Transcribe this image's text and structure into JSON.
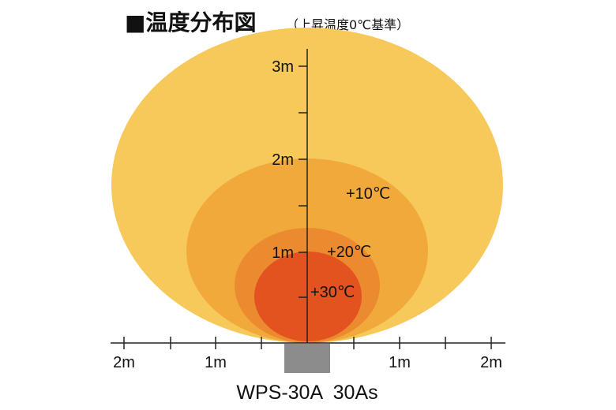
{
  "title": {
    "main": "■温度分布図",
    "sub": "（上昇温度0℃基準）"
  },
  "zones": [
    {
      "label": "",
      "color": "#F7C85A"
    },
    {
      "label": "+10℃",
      "color": "#F2A93B"
    },
    {
      "label": "+20℃",
      "color": "#EC8A30"
    },
    {
      "label": "+30℃",
      "color": "#E2531F"
    }
  ],
  "vertical_axis": {
    "ticks": [
      "1m",
      "2m",
      "3m"
    ]
  },
  "horizontal_axis": {
    "ticks": [
      "2m",
      "1m",
      "1m",
      "2m"
    ]
  },
  "heater": {
    "color": "#8C8C8C"
  },
  "model": "WPS-30A  30As"
}
